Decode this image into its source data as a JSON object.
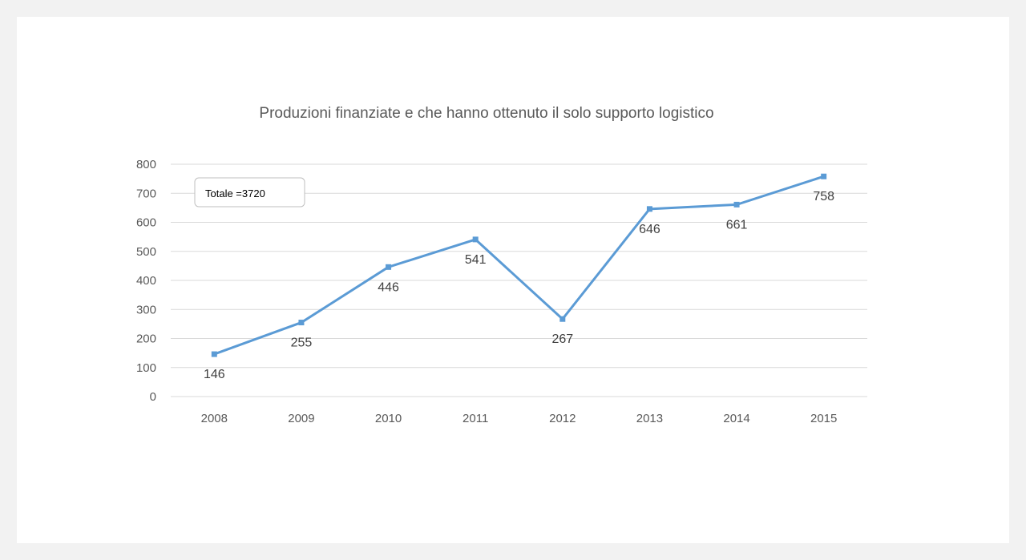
{
  "colors": {
    "page_background": "#f2f2f2",
    "card_background": "#ffffff",
    "series": "#5b9bd5",
    "gridline": "#d9d9d9",
    "text": "#595959"
  },
  "chart_data": {
    "type": "line",
    "title": "Produzioni finanziate e che hanno ottenuto il solo supporto logistico",
    "xlabel": "",
    "ylabel": "",
    "categories": [
      "2008",
      "2009",
      "2010",
      "2011",
      "2012",
      "2013",
      "2014",
      "2015"
    ],
    "series": [
      {
        "values": [
          146,
          255,
          446,
          541,
          267,
          646,
          661,
          758
        ]
      }
    ],
    "data_labels": [
      "146",
      "255",
      "446",
      "541",
      "267",
      "646",
      "661",
      "758"
    ],
    "ylim": [
      0,
      800
    ],
    "yticks": [
      0,
      100,
      200,
      300,
      400,
      500,
      600,
      700,
      800
    ],
    "ytick_labels": [
      "0",
      "100",
      "200",
      "300",
      "400",
      "500",
      "600",
      "700",
      "800"
    ],
    "grid": true,
    "legend": "none",
    "annotation": "Totale =3720",
    "marker": "square"
  }
}
